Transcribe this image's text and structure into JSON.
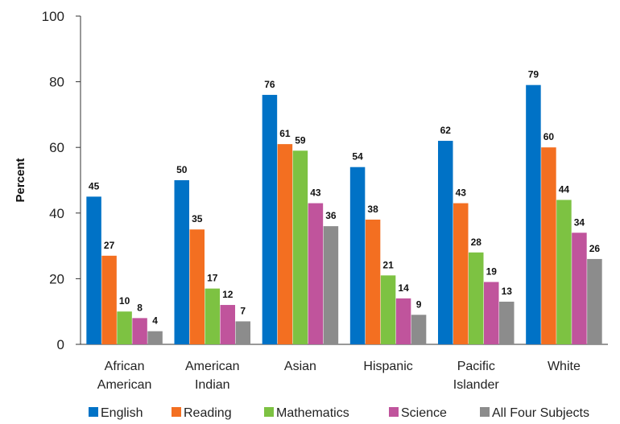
{
  "chart_data": {
    "type": "bar",
    "ylabel": "Percent",
    "ylim": [
      0,
      100
    ],
    "yticks": [
      0,
      20,
      40,
      60,
      80,
      100
    ],
    "grid": false,
    "legend_position": "bottom",
    "categories": [
      [
        "African",
        "American"
      ],
      [
        "American",
        "Indian"
      ],
      [
        "Asian"
      ],
      [
        "Hispanic"
      ],
      [
        "Pacific",
        "Islander"
      ],
      [
        "White"
      ]
    ],
    "series": [
      {
        "name": "English",
        "color": "#0072C6",
        "values": [
          45,
          50,
          76,
          54,
          62,
          79
        ]
      },
      {
        "name": "Reading",
        "color": "#F36F21",
        "values": [
          27,
          35,
          61,
          38,
          43,
          60
        ]
      },
      {
        "name": "Mathematics",
        "color": "#7DC242",
        "values": [
          10,
          17,
          59,
          21,
          28,
          44
        ]
      },
      {
        "name": "Science",
        "color": "#C0549C",
        "values": [
          8,
          12,
          43,
          14,
          19,
          34
        ]
      },
      {
        "name": "All Four Subjects",
        "color": "#8C8C8C",
        "values": [
          4,
          7,
          36,
          9,
          13,
          26
        ]
      }
    ]
  }
}
